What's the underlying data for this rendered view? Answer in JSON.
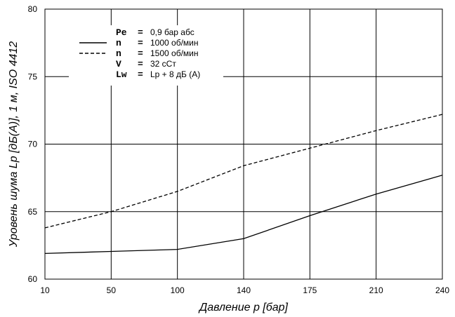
{
  "chart_data": {
    "type": "line",
    "xlabel": "Давление p [бар]",
    "ylabel": "Уровень шума Lp [дБ(А)], 1 м, ISO 4412",
    "x_ticks": [
      "10",
      "50",
      "100",
      "140",
      "175",
      "210",
      "240"
    ],
    "y_ticks": [
      "60",
      "65",
      "70",
      "75",
      "80"
    ],
    "ylim": [
      60,
      80
    ],
    "x_scale": "categorical (labelled ticks equally spaced)",
    "grid": true,
    "legend_position": "top-left",
    "series": [
      {
        "name": "n = 1000 об/мин",
        "style": "solid",
        "x": [
          "10",
          "50",
          "100",
          "140",
          "175",
          "210",
          "240"
        ],
        "values": [
          61.9,
          62.05,
          62.2,
          63.0,
          64.7,
          66.3,
          67.7
        ]
      },
      {
        "name": "n = 1500 об/мин",
        "style": "dashed",
        "x": [
          "10",
          "50",
          "100",
          "140",
          "175",
          "210",
          "240"
        ],
        "values": [
          63.8,
          65.0,
          66.5,
          68.4,
          69.7,
          71.0,
          72.2
        ]
      }
    ],
    "legend": [
      {
        "symbol": "Pe",
        "eq": "=",
        "text": "0,9 бар абс"
      },
      {
        "symbol": "n",
        "eq": "=",
        "text": "1000 об/мин",
        "line": "solid"
      },
      {
        "symbol": "n",
        "eq": "=",
        "text": "1500 об/мин",
        "line": "dashed"
      },
      {
        "symbol": "V",
        "eq": "=",
        "text": "32 сСт"
      },
      {
        "symbol": "Lw",
        "eq": "=",
        "text": "Lp + 8 дБ (А)"
      }
    ]
  }
}
